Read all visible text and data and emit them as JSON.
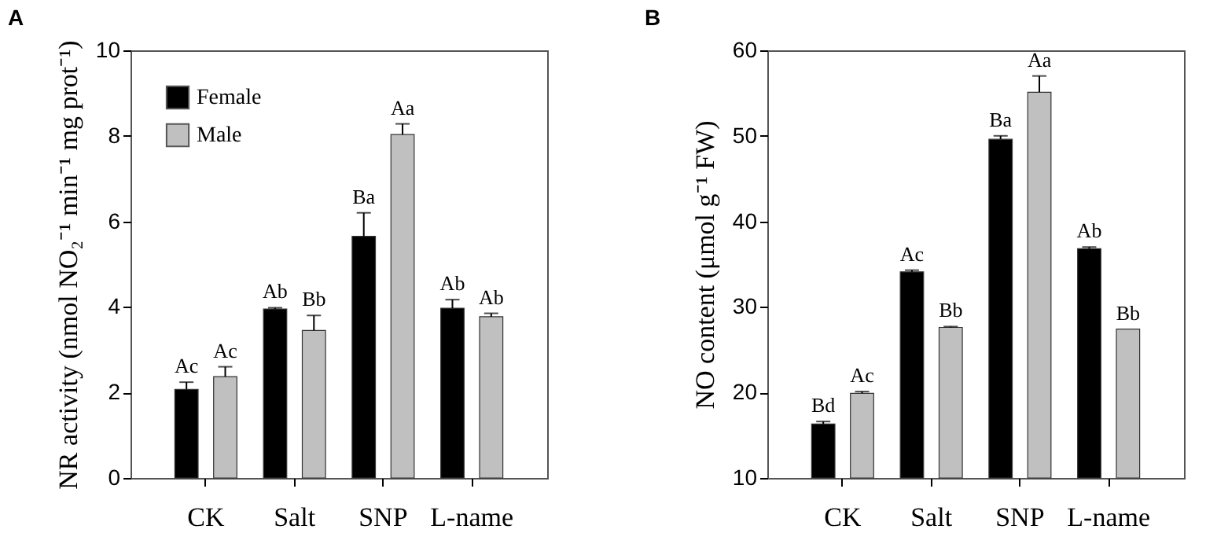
{
  "chart_data": [
    {
      "type": "bar",
      "title": "A",
      "ylabel": "NR activity (nmol NO₂⁻¹ min⁻¹ mg prot⁻¹)",
      "categories": [
        "CK",
        "Salt",
        "SNP",
        "L-name"
      ],
      "series": [
        {
          "name": "Female",
          "color": "#000000",
          "values": [
            2.07,
            3.95,
            5.65,
            3.97
          ],
          "errors": [
            0.17,
            0.03,
            0.55,
            0.2
          ]
        },
        {
          "name": "Male",
          "color": "#c0c0c0",
          "values": [
            2.37,
            3.45,
            8.03,
            3.77
          ],
          "errors": [
            0.23,
            0.35,
            0.25,
            0.08
          ]
        }
      ],
      "ylim": [
        0,
        10
      ],
      "yticks": [
        0,
        2,
        4,
        6,
        8,
        10
      ],
      "grid": false,
      "legend": "top left",
      "annotations": [
        "Ac",
        "Ac",
        "Ab",
        "Bb",
        "Ba",
        "Aa",
        "Ab",
        "Ab"
      ]
    },
    {
      "type": "bar",
      "title": "B",
      "ylabel": "NO content (μmol g⁻¹ FW)",
      "categories": [
        "CK",
        "Salt",
        "SNP",
        "L-name"
      ],
      "series": [
        {
          "color": "#000000",
          "values": [
            16.3,
            34.1,
            49.6,
            36.8
          ],
          "errors": [
            0.3,
            0.2,
            0.4,
            0.2
          ]
        },
        {
          "color": "#c0c0c0",
          "values": [
            19.9,
            27.6,
            55.1,
            27.4
          ],
          "errors": [
            0.2,
            0.1,
            1.9,
            null
          ]
        }
      ],
      "ylim": [
        10,
        60
      ],
      "yticks": [
        10,
        20,
        30,
        40,
        50,
        60
      ],
      "grid": false,
      "legend": false,
      "annotations": [
        "Bd",
        "Ac",
        "Ac",
        "Bb",
        "Ba",
        "Aa",
        "Ab",
        "Bb"
      ]
    }
  ]
}
